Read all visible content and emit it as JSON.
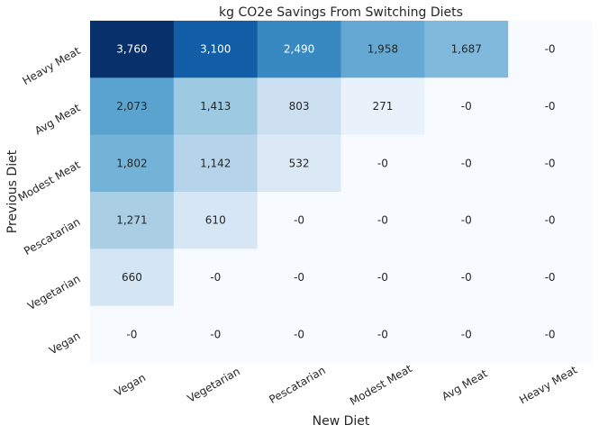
{
  "chart_data": {
    "type": "heatmap",
    "title": "kg CO2e Savings From Switching Diets",
    "xlabel": "New Diet",
    "ylabel": "Previous Diet",
    "x_categories": [
      "Vegan",
      "Vegetarian",
      "Pescatarian",
      "Modest Meat",
      "Avg Meat",
      "Heavy Meat"
    ],
    "y_categories": [
      "Heavy Meat",
      "Avg Meat",
      "Modest Meat",
      "Pescatarian",
      "Vegetarian",
      "Vegan"
    ],
    "values": [
      [
        3760,
        3100,
        2490,
        1958,
        1687,
        0
      ],
      [
        2073,
        1413,
        803,
        271,
        0,
        0
      ],
      [
        1802,
        1142,
        532,
        0,
        0,
        0
      ],
      [
        1271,
        610,
        0,
        0,
        0,
        0
      ],
      [
        660,
        0,
        0,
        0,
        0,
        0
      ],
      [
        0,
        0,
        0,
        0,
        0,
        0
      ]
    ],
    "cell_labels": [
      [
        "3,760",
        "3,100",
        "2,490",
        "1,958",
        "1,687",
        "-0"
      ],
      [
        "2,073",
        "1,413",
        "803",
        "271",
        "-0",
        "-0"
      ],
      [
        "1,802",
        "1,142",
        "532",
        "-0",
        "-0",
        "-0"
      ],
      [
        "1,271",
        "610",
        "-0",
        "-0",
        "-0",
        "-0"
      ],
      [
        "660",
        "-0",
        "-0",
        "-0",
        "-0",
        "-0"
      ],
      [
        "-0",
        "-0",
        "-0",
        "-0",
        "-0",
        "-0"
      ]
    ],
    "color_range": [
      0,
      3760
    ],
    "colormap": "Blues",
    "colorbar": false,
    "grid": false
  }
}
